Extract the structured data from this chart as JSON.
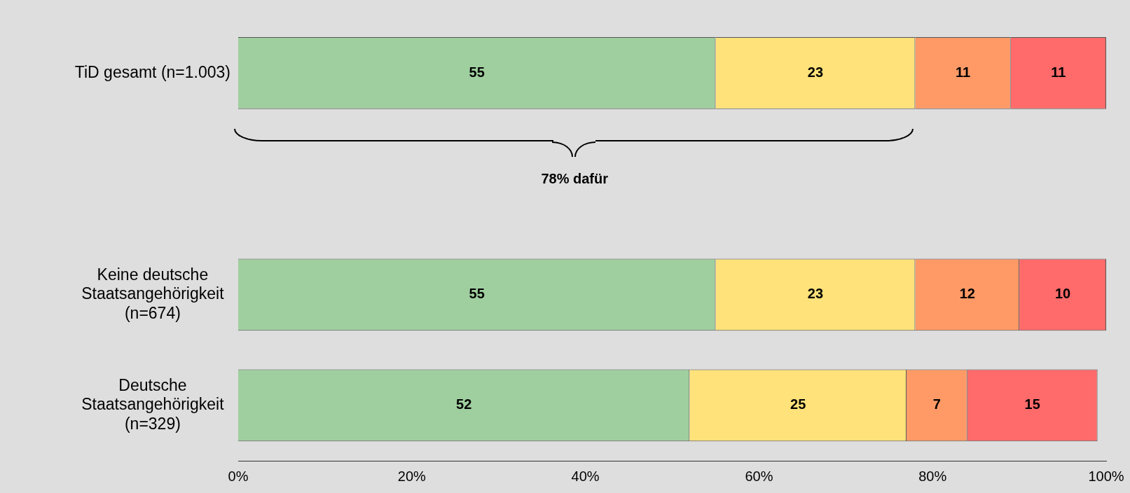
{
  "chart_data": {
    "type": "bar",
    "orientation": "horizontal",
    "stacked": true,
    "data_labels": true,
    "grid": false,
    "legend": false,
    "categories": [
      "TiD gesamt (n=1.003)",
      null,
      "Keine deutsche Staatsangehörigkeit (n=674)",
      "Deutsche Staatsangehörigkeit (n=329)"
    ],
    "series": [
      {
        "color": "#9fcf9f",
        "values": [
          55,
          null,
          55,
          52
        ]
      },
      {
        "color": "#ffe27a",
        "values": [
          23,
          null,
          23,
          25
        ]
      },
      {
        "color": "#ff9a66",
        "values": [
          11,
          null,
          12,
          7
        ]
      },
      {
        "color": "#ff6a6a",
        "values": [
          11,
          null,
          10,
          15
        ]
      }
    ],
    "xlim": [
      0,
      100
    ],
    "xticks": [
      {
        "value": 0,
        "label": "0%"
      },
      {
        "value": 20,
        "label": "20%"
      },
      {
        "value": 40,
        "label": "40%"
      },
      {
        "value": 60,
        "label": "60%"
      },
      {
        "value": 80,
        "label": "80%"
      },
      {
        "value": 100,
        "label": "100%"
      }
    ],
    "annotations": [
      "78% dafür"
    ]
  }
}
